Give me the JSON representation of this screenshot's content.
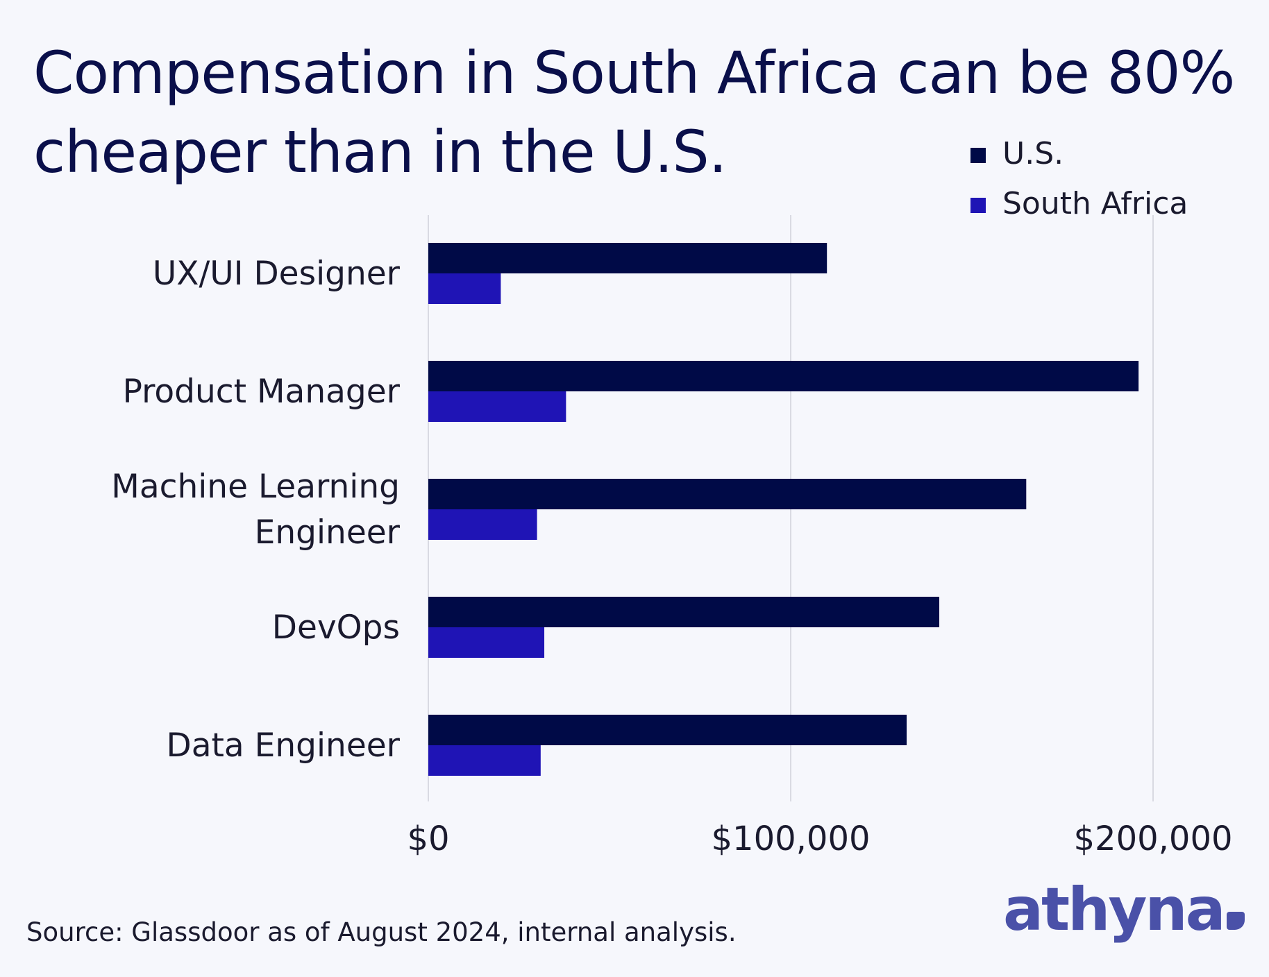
{
  "title": {
    "line1": "Compensation in South Africa can be 80%",
    "line2": "cheaper than in the U.S."
  },
  "source": "Source: Glassdoor as of August 2024, internal analysis.",
  "logo": "athyna",
  "colors": {
    "us": "#000a47",
    "south_africa": "#1f14b5",
    "title": "#0a0f4a",
    "logo": "#4a51a8",
    "grid": "#d9dae2"
  },
  "chart_data": {
    "type": "bar",
    "orientation": "horizontal",
    "categories": [
      [
        "UX/UI Designer"
      ],
      [
        "Product Manager"
      ],
      [
        "Machine Learning",
        "Engineer"
      ],
      [
        "DevOps"
      ],
      [
        "Data Engineer"
      ]
    ],
    "series": [
      {
        "name": "U.S.",
        "values": [
          110000,
          196000,
          165000,
          141000,
          132000
        ]
      },
      {
        "name": "South Africa",
        "values": [
          20000,
          38000,
          30000,
          32000,
          31000
        ]
      }
    ],
    "xlim": [
      0,
      200000
    ],
    "xticks": [
      0,
      100000,
      200000
    ],
    "xtick_labels": [
      "$0",
      "$100,000",
      "$200,000"
    ],
    "grid": true,
    "legend": "top-right"
  }
}
